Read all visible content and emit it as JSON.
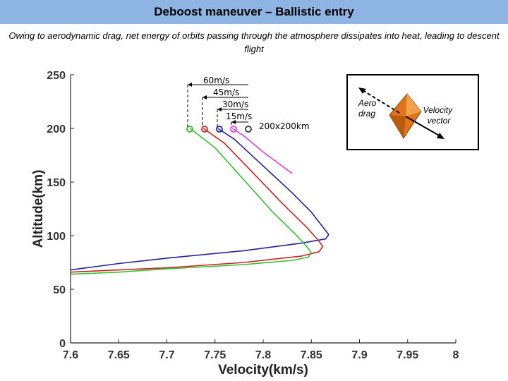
{
  "title": "Deboost maneuver – Ballistic entry",
  "subtitle": "Owing to aerodynamic drag, net energy of orbits passing through the atmosphere dissipates into heat, leading to descent flight",
  "chart_data": {
    "type": "line",
    "xlabel": "Velocity(km/s)",
    "ylabel": "Altitude(km)",
    "xlim": [
      7.6,
      8.0
    ],
    "ylim": [
      0,
      250
    ],
    "xticks": [
      7.6,
      7.65,
      7.7,
      7.75,
      7.8,
      7.85,
      7.9,
      7.95,
      8.0
    ],
    "xtick_labels": [
      "7.6",
      "7.65",
      "7.7",
      "7.75",
      "7.8",
      "7.85",
      "7.9",
      "7.95",
      "8"
    ],
    "yticks": [
      0,
      50,
      100,
      150,
      200,
      250
    ],
    "ytick_labels": [
      "0",
      "50",
      "100",
      "150",
      "200",
      "250"
    ],
    "grid": false,
    "annotations": [
      "60m/s",
      "45m/s",
      "30m/s",
      "15m/s",
      "200x200km"
    ],
    "inset_labels": [
      "Aero drag",
      "Velocity vector"
    ],
    "series": [
      {
        "color": "#e040e0",
        "x": [
          7.768,
          7.78,
          7.8,
          7.83
        ],
        "y": [
          200,
          193,
          178,
          158
        ]
      },
      {
        "color": "#2020a0",
        "x": [
          7.753,
          7.77,
          7.8,
          7.83,
          7.85,
          7.862,
          7.868,
          7.865,
          7.84,
          7.78,
          7.7,
          7.65,
          7.6
        ],
        "y": [
          200,
          190,
          165,
          140,
          122,
          108,
          101,
          97,
          93,
          86,
          79,
          74,
          68
        ]
      },
      {
        "color": "#d02020",
        "x": [
          7.738,
          7.76,
          7.79,
          7.82,
          7.845,
          7.857,
          7.862,
          7.858,
          7.84,
          7.78,
          7.7,
          7.65,
          7.6
        ],
        "y": [
          200,
          186,
          158,
          130,
          108,
          96,
          90,
          85,
          81,
          75,
          70,
          68,
          66
        ]
      },
      {
        "color": "#30c030",
        "x": [
          7.724,
          7.75,
          7.78,
          7.81,
          7.835,
          7.845,
          7.85,
          7.847,
          7.83,
          7.78,
          7.7,
          7.65,
          7.6
        ],
        "y": [
          200,
          182,
          152,
          122,
          100,
          90,
          84,
          80,
          77,
          73,
          69,
          66,
          64
        ]
      }
    ]
  }
}
